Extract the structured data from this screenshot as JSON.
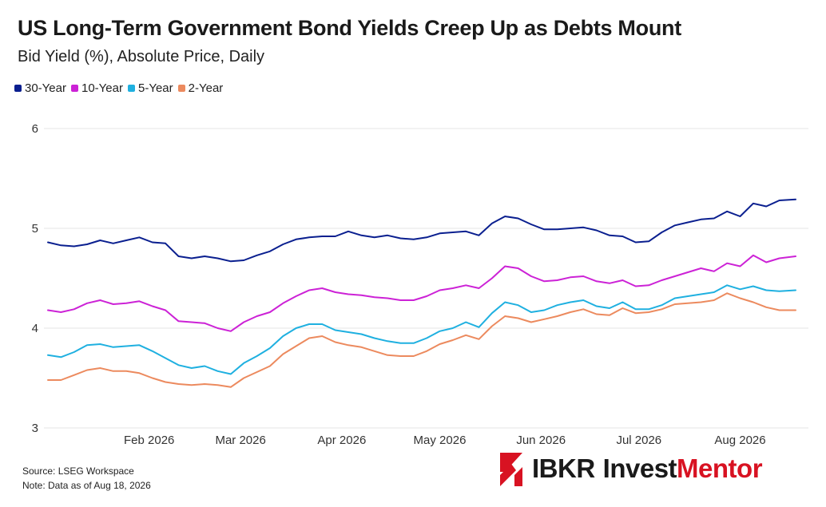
{
  "title": "US Long-Term Government Bond Yields Creep Up as Debts Mount",
  "subtitle": "Bid Yield (%), Absolute Price, Daily",
  "footer": {
    "source": "Source: LSEG Workspace",
    "note": "Note: Data as of Aug 18, 2026"
  },
  "logo": {
    "brand": "IBKR",
    "product_dark": "Invest",
    "product_red": "Mentor"
  },
  "colors": {
    "30y": "#0a1f8f",
    "10y": "#cc22d6",
    "5y": "#1fb0e0",
    "2y": "#ec8a5e",
    "logo_red": "#d81222"
  },
  "chart_data": {
    "type": "line",
    "title": "US Long-Term Government Bond Yields Creep Up as Debts Mount",
    "subtitle": "Bid Yield (%), Absolute Price, Daily",
    "ylim": [
      3,
      6
    ],
    "yticks": [
      "3",
      "4",
      "5",
      "6"
    ],
    "xlim": [
      "2026-01-01",
      "2026-08-18"
    ],
    "xticks": [
      {
        "date": "2026-02-01",
        "label": "Feb 2026"
      },
      {
        "date": "2026-03-01",
        "label": "Mar 2026"
      },
      {
        "date": "2026-04-01",
        "label": "Apr 2026"
      },
      {
        "date": "2026-05-01",
        "label": "May 2026"
      },
      {
        "date": "2026-06-01",
        "label": "Jun 2026"
      },
      {
        "date": "2026-07-01",
        "label": "Jul 2026"
      },
      {
        "date": "2026-08-01",
        "label": "Aug 2026"
      }
    ],
    "grid": "horizontal",
    "legend_position": "top-left",
    "x": [
      "2026-01-01",
      "2026-01-05",
      "2026-01-09",
      "2026-01-13",
      "2026-01-17",
      "2026-01-21",
      "2026-01-25",
      "2026-01-29",
      "2026-02-02",
      "2026-02-06",
      "2026-02-10",
      "2026-02-14",
      "2026-02-18",
      "2026-02-22",
      "2026-02-26",
      "2026-03-02",
      "2026-03-06",
      "2026-03-10",
      "2026-03-14",
      "2026-03-18",
      "2026-03-22",
      "2026-03-26",
      "2026-03-30",
      "2026-04-03",
      "2026-04-07",
      "2026-04-11",
      "2026-04-15",
      "2026-04-19",
      "2026-04-23",
      "2026-04-27",
      "2026-05-01",
      "2026-05-05",
      "2026-05-09",
      "2026-05-13",
      "2026-05-17",
      "2026-05-21",
      "2026-05-25",
      "2026-05-29",
      "2026-06-02",
      "2026-06-06",
      "2026-06-10",
      "2026-06-14",
      "2026-06-18",
      "2026-06-22",
      "2026-06-26",
      "2026-06-30",
      "2026-07-04",
      "2026-07-08",
      "2026-07-12",
      "2026-07-16",
      "2026-07-20",
      "2026-07-24",
      "2026-07-28",
      "2026-08-01",
      "2026-08-05",
      "2026-08-09",
      "2026-08-13",
      "2026-08-18"
    ],
    "series": [
      {
        "name": "30-Year",
        "color_key": "30y",
        "values": [
          4.86,
          4.83,
          4.82,
          4.84,
          4.88,
          4.85,
          4.88,
          4.91,
          4.86,
          4.85,
          4.72,
          4.7,
          4.72,
          4.7,
          4.67,
          4.68,
          4.73,
          4.77,
          4.84,
          4.89,
          4.91,
          4.92,
          4.92,
          4.97,
          4.93,
          4.91,
          4.93,
          4.9,
          4.89,
          4.91,
          4.95,
          4.96,
          4.97,
          4.93,
          5.05,
          5.12,
          5.1,
          5.04,
          4.99,
          4.99,
          5.0,
          5.01,
          4.98,
          4.93,
          4.92,
          4.86,
          4.87,
          4.96,
          5.03,
          5.06,
          5.09,
          5.1,
          5.17,
          5.12,
          5.25,
          5.22,
          5.28,
          5.29
        ]
      },
      {
        "name": "10-Year",
        "color_key": "10y",
        "values": [
          4.18,
          4.16,
          4.19,
          4.25,
          4.28,
          4.24,
          4.25,
          4.27,
          4.22,
          4.18,
          4.07,
          4.06,
          4.05,
          4.0,
          3.97,
          4.06,
          4.12,
          4.16,
          4.25,
          4.32,
          4.38,
          4.4,
          4.36,
          4.34,
          4.33,
          4.31,
          4.3,
          4.28,
          4.28,
          4.32,
          4.38,
          4.4,
          4.43,
          4.4,
          4.5,
          4.62,
          4.6,
          4.52,
          4.47,
          4.48,
          4.51,
          4.52,
          4.47,
          4.45,
          4.48,
          4.42,
          4.43,
          4.48,
          4.52,
          4.56,
          4.6,
          4.57,
          4.65,
          4.62,
          4.73,
          4.66,
          4.7,
          4.72
        ]
      },
      {
        "name": "5-Year",
        "color_key": "5y",
        "values": [
          3.73,
          3.71,
          3.76,
          3.83,
          3.84,
          3.81,
          3.82,
          3.83,
          3.77,
          3.7,
          3.63,
          3.6,
          3.62,
          3.57,
          3.54,
          3.65,
          3.72,
          3.8,
          3.92,
          4.0,
          4.04,
          4.04,
          3.98,
          3.96,
          3.94,
          3.9,
          3.87,
          3.85,
          3.85,
          3.9,
          3.97,
          4.0,
          4.06,
          4.01,
          4.15,
          4.26,
          4.23,
          4.16,
          4.18,
          4.23,
          4.26,
          4.28,
          4.22,
          4.2,
          4.26,
          4.19,
          4.19,
          4.23,
          4.3,
          4.32,
          4.34,
          4.36,
          4.43,
          4.39,
          4.42,
          4.38,
          4.37,
          4.38
        ]
      },
      {
        "name": "2-Year",
        "color_key": "2y",
        "values": [
          3.48,
          3.48,
          3.53,
          3.58,
          3.6,
          3.57,
          3.57,
          3.55,
          3.5,
          3.46,
          3.44,
          3.43,
          3.44,
          3.43,
          3.41,
          3.5,
          3.56,
          3.62,
          3.74,
          3.82,
          3.9,
          3.92,
          3.86,
          3.83,
          3.81,
          3.77,
          3.73,
          3.72,
          3.72,
          3.77,
          3.84,
          3.88,
          3.93,
          3.89,
          4.02,
          4.12,
          4.1,
          4.06,
          4.09,
          4.12,
          4.16,
          4.19,
          4.14,
          4.13,
          4.2,
          4.15,
          4.16,
          4.19,
          4.24,
          4.25,
          4.26,
          4.28,
          4.35,
          4.3,
          4.26,
          4.21,
          4.18,
          4.18
        ]
      }
    ]
  }
}
